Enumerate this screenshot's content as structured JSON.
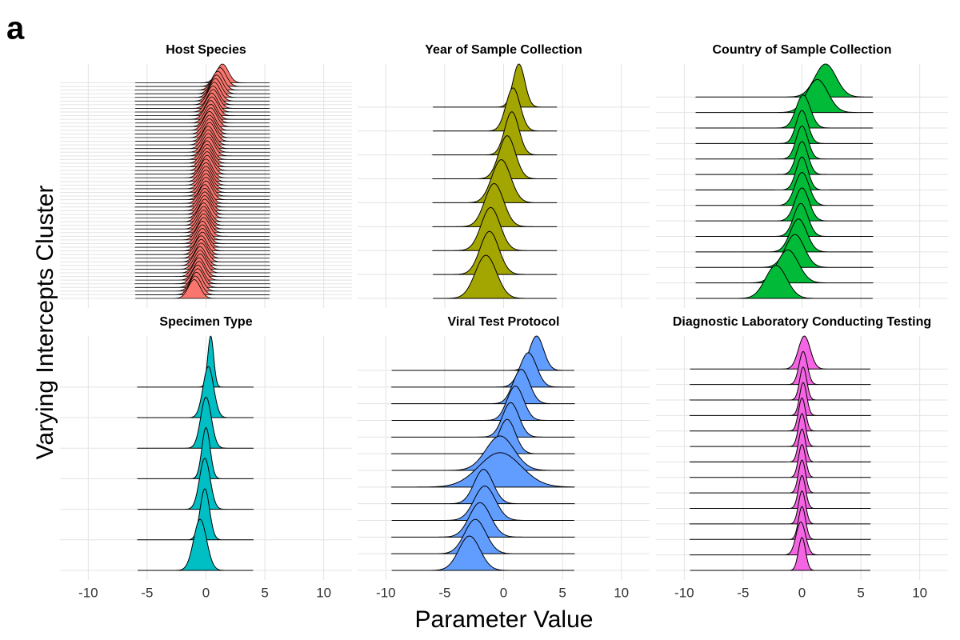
{
  "panel_label": "a",
  "x_label": "Parameter Value",
  "y_label": "Varying Intercepts Cluster",
  "chart_data": [
    {
      "type": "ridgeline",
      "title": "Host Species",
      "color": "#f8766d",
      "xlim": [
        -12.4,
        12.4
      ],
      "xticks": [
        -10,
        -5,
        0,
        5,
        10
      ],
      "support": [
        -6,
        5.4
      ],
      "modes": [
        1.4,
        1.2,
        1.0,
        0.9,
        0.8,
        0.7,
        0.6,
        0.6,
        0.5,
        0.5,
        0.4,
        0.4,
        0.4,
        0.3,
        0.3,
        0.3,
        0.3,
        0.2,
        0.2,
        0.2,
        0.2,
        0.1,
        0.1,
        0.1,
        0.1,
        0.1,
        0,
        0,
        0,
        0,
        0,
        0,
        0,
        -0.1,
        -0.1,
        -0.1,
        -0.1,
        -0.1,
        -0.2,
        -0.2,
        -0.2,
        -0.2,
        -0.2,
        -0.3,
        -0.3,
        -0.3,
        -0.3,
        -0.4,
        -0.4,
        -0.4,
        -0.5,
        -0.5,
        -0.5,
        -0.6,
        -0.6,
        -0.7,
        -0.7,
        -0.8,
        -0.9,
        -1.0
      ],
      "widths": [
        0.5,
        0.5,
        0.5,
        0.5,
        0.5,
        0.5,
        0.5,
        0.5,
        0.5,
        0.5,
        0.5,
        0.5,
        0.5,
        0.5,
        0.5,
        0.5,
        0.5,
        0.5,
        0.5,
        0.5,
        0.5,
        0.5,
        0.5,
        0.5,
        0.5,
        0.5,
        0.5,
        0.5,
        0.5,
        0.5,
        0.5,
        0.5,
        0.5,
        0.5,
        0.5,
        0.5,
        0.5,
        0.5,
        0.5,
        0.5,
        0.5,
        0.5,
        0.5,
        0.5,
        0.5,
        0.5,
        0.5,
        0.5,
        0.5,
        0.5,
        0.5,
        0.5,
        0.5,
        0.5,
        0.5,
        0.5,
        0.5,
        0.5,
        0.5,
        0.5
      ]
    },
    {
      "type": "ridgeline",
      "title": "Year of Sample Collection",
      "color": "#a3a500",
      "xlim": [
        -12.4,
        12.4
      ],
      "xticks": [
        -10,
        -5,
        0,
        5,
        10
      ],
      "support": [
        -6,
        4.5
      ],
      "modes": [
        1.3,
        0.8,
        0.7,
        0.3,
        -0.2,
        -0.8,
        -1.1,
        -1.2,
        -1.5
      ],
      "widths": [
        0.5,
        0.6,
        0.6,
        0.7,
        0.8,
        0.8,
        0.8,
        0.8,
        0.9
      ]
    },
    {
      "type": "ridgeline",
      "title": "Country of Sample Collection",
      "color": "#00ba38",
      "xlim": [
        -12.4,
        12.4
      ],
      "xticks": [
        -10,
        -5,
        0,
        5,
        10
      ],
      "support": [
        -9,
        6
      ],
      "modes": [
        2.0,
        1.3,
        0.1,
        0,
        0,
        0,
        0,
        0,
        0,
        -0.1,
        -0.3,
        -0.6,
        -1.2,
        -2.2
      ],
      "widths": [
        0.9,
        0.9,
        0.6,
        0.5,
        0.5,
        0.5,
        0.5,
        0.6,
        0.6,
        0.6,
        0.7,
        0.8,
        0.9,
        0.9
      ]
    },
    {
      "type": "ridgeline",
      "title": "Specimen Type",
      "color": "#00bfc4",
      "xlim": [
        -12.4,
        12.4
      ],
      "xticks": [
        -10,
        -5,
        0,
        5,
        10
      ],
      "support": [
        -5.8,
        4
      ],
      "modes": [
        0.4,
        0.2,
        0,
        0,
        -0.1,
        -0.1,
        -0.5
      ],
      "widths": [
        0.25,
        0.45,
        0.45,
        0.35,
        0.45,
        0.4,
        0.55
      ]
    },
    {
      "type": "ridgeline",
      "title": "Viral Test Protocol",
      "color": "#619cff",
      "xlim": [
        -12.4,
        12.4
      ],
      "xticks": [
        -10,
        -5,
        0,
        5,
        10
      ],
      "support": [
        -9.5,
        6
      ],
      "modes": [
        2.8,
        2.1,
        1.5,
        1.0,
        0.6,
        0.3,
        -0.3,
        -0.3,
        -1.7,
        -1.6,
        -2.0,
        -2.4,
        -2.9
      ],
      "widths": [
        0.6,
        0.7,
        0.7,
        0.7,
        0.7,
        0.7,
        1.2,
        1.8,
        0.8,
        0.9,
        0.9,
        0.9,
        0.9
      ]
    },
    {
      "type": "ridgeline",
      "title": "Diagnostic Laboratory Conducting Testing",
      "color": "#f564e3",
      "xlim": [
        -12.4,
        12.4
      ],
      "xticks": [
        -10,
        -5,
        0,
        5,
        10
      ],
      "support": [
        -9.5,
        5.8
      ],
      "modes": [
        0.2,
        0.1,
        0.1,
        0.1,
        0,
        0,
        0,
        0,
        0,
        0,
        0,
        0,
        -0.1,
        0
      ],
      "widths": [
        0.5,
        0.35,
        0.3,
        0.3,
        0.3,
        0.3,
        0.3,
        0.3,
        0.3,
        0.3,
        0.3,
        0.3,
        0.4,
        0.3
      ]
    }
  ]
}
